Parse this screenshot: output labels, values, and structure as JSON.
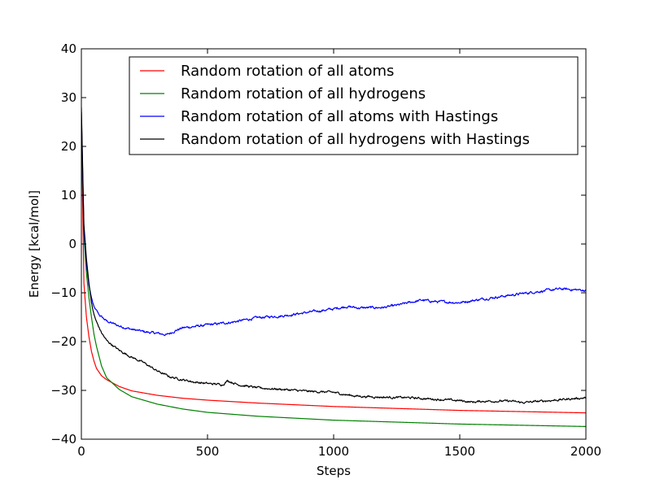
{
  "chart_data": {
    "type": "line",
    "title": "",
    "xlabel": "Steps",
    "ylabel": "Energy [kcal/mol]",
    "xlim": [
      0,
      2000
    ],
    "ylim": [
      -40,
      40
    ],
    "x_ticks": [
      0,
      500,
      1000,
      1500,
      2000
    ],
    "y_ticks": [
      40,
      30,
      20,
      10,
      0,
      -10,
      -20,
      -30,
      -40
    ],
    "x_tick_labels": [
      "0",
      "500",
      "1000",
      "1500",
      "2000"
    ],
    "y_tick_labels": [
      "40",
      "30",
      "20",
      "10",
      "0",
      "−10",
      "−20",
      "−30",
      "−40"
    ],
    "grid": false,
    "legend_position": "top-right",
    "series": [
      {
        "name": "Random rotation of all atoms",
        "color": "#ff0000",
        "noise": 0,
        "points": [
          [
            0,
            25
          ],
          [
            10,
            -8
          ],
          [
            20,
            -15
          ],
          [
            30,
            -19
          ],
          [
            40,
            -22
          ],
          [
            50,
            -24
          ],
          [
            60,
            -25.5
          ],
          [
            80,
            -27
          ],
          [
            100,
            -27.8
          ],
          [
            150,
            -29.2
          ],
          [
            200,
            -30.1
          ],
          [
            300,
            -31
          ],
          [
            400,
            -31.6
          ],
          [
            500,
            -32
          ],
          [
            700,
            -32.6
          ],
          [
            1000,
            -33.3
          ],
          [
            1500,
            -34.1
          ],
          [
            2000,
            -34.6
          ]
        ]
      },
      {
        "name": "Random rotation of all hydrogens",
        "color": "#008000",
        "noise": 0,
        "points": [
          [
            0,
            25
          ],
          [
            10,
            2
          ],
          [
            20,
            -6
          ],
          [
            30,
            -11
          ],
          [
            40,
            -15
          ],
          [
            50,
            -18.5
          ],
          [
            60,
            -21
          ],
          [
            80,
            -25
          ],
          [
            100,
            -27.4
          ],
          [
            150,
            -29.8
          ],
          [
            200,
            -31.3
          ],
          [
            300,
            -32.8
          ],
          [
            400,
            -33.8
          ],
          [
            500,
            -34.5
          ],
          [
            700,
            -35.3
          ],
          [
            1000,
            -36.1
          ],
          [
            1500,
            -36.9
          ],
          [
            2000,
            -37.4
          ]
        ]
      },
      {
        "name": "Random rotation of all atoms with Hastings",
        "color": "#0000ff",
        "noise": 0.35,
        "points": [
          [
            0,
            27
          ],
          [
            10,
            3
          ],
          [
            20,
            -4
          ],
          [
            30,
            -8.5
          ],
          [
            40,
            -11
          ],
          [
            50,
            -13
          ],
          [
            70,
            -14.5
          ],
          [
            100,
            -15.8
          ],
          [
            150,
            -16.8
          ],
          [
            200,
            -17.5
          ],
          [
            250,
            -18
          ],
          [
            300,
            -18.3
          ],
          [
            340,
            -18.6
          ],
          [
            370,
            -17.8
          ],
          [
            400,
            -17.2
          ],
          [
            500,
            -16.6
          ],
          [
            600,
            -16
          ],
          [
            700,
            -15.1
          ],
          [
            800,
            -14.7
          ],
          [
            900,
            -14
          ],
          [
            1000,
            -13.3
          ],
          [
            1050,
            -12.8
          ],
          [
            1100,
            -13.1
          ],
          [
            1200,
            -13
          ],
          [
            1250,
            -12.6
          ],
          [
            1300,
            -12
          ],
          [
            1350,
            -11.5
          ],
          [
            1400,
            -11.8
          ],
          [
            1500,
            -12
          ],
          [
            1600,
            -11.2
          ],
          [
            1700,
            -10.5
          ],
          [
            1800,
            -9.8
          ],
          [
            1900,
            -9.2
          ],
          [
            2000,
            -9.5
          ]
        ]
      },
      {
        "name": "Random rotation of all hydrogens with Hastings",
        "color": "#000000",
        "noise": 0.3,
        "points": [
          [
            0,
            28
          ],
          [
            10,
            4
          ],
          [
            20,
            -3
          ],
          [
            30,
            -8
          ],
          [
            40,
            -12
          ],
          [
            50,
            -14.5
          ],
          [
            60,
            -16
          ],
          [
            80,
            -18.2
          ],
          [
            100,
            -19.8
          ],
          [
            150,
            -21.8
          ],
          [
            200,
            -23.2
          ],
          [
            250,
            -24.4
          ],
          [
            300,
            -26
          ],
          [
            350,
            -27.2
          ],
          [
            400,
            -27.8
          ],
          [
            450,
            -28.3
          ],
          [
            500,
            -28.6
          ],
          [
            560,
            -28.8
          ],
          [
            580,
            -28
          ],
          [
            620,
            -28.8
          ],
          [
            700,
            -29.5
          ],
          [
            800,
            -29.8
          ],
          [
            900,
            -30.2
          ],
          [
            1000,
            -30.4
          ],
          [
            1050,
            -30.9
          ],
          [
            1100,
            -31.2
          ],
          [
            1200,
            -31.4
          ],
          [
            1300,
            -31.5
          ],
          [
            1400,
            -31.8
          ],
          [
            1500,
            -32.1
          ],
          [
            1550,
            -32.4
          ],
          [
            1600,
            -32.2
          ],
          [
            1700,
            -32.2
          ],
          [
            1750,
            -32.5
          ],
          [
            1800,
            -32.3
          ],
          [
            1900,
            -31.9
          ],
          [
            2000,
            -31.5
          ]
        ]
      }
    ]
  }
}
